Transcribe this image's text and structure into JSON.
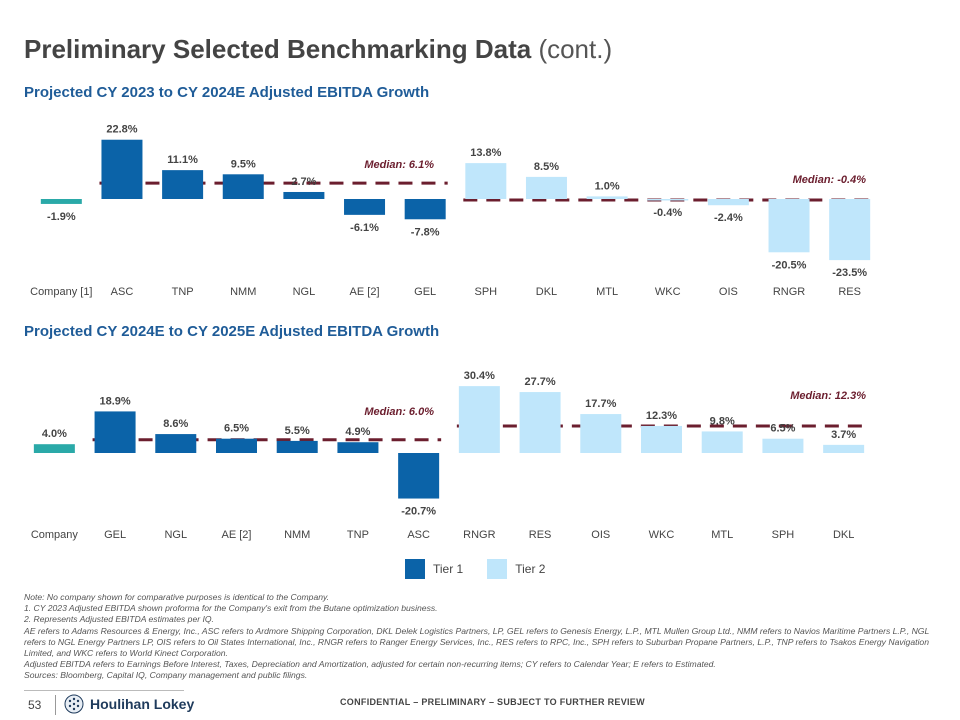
{
  "page": {
    "title_main": "Preliminary Selected Benchmarking Data",
    "title_suffix": "(cont.)",
    "page_number": "53",
    "logo_text": "Houlihan Lokey",
    "confidential": "CONFIDENTIAL – PRELIMINARY – SUBJECT TO FURTHER REVIEW"
  },
  "colors": {
    "tier1": "#0b63a8",
    "tier2": "#bfe6fb",
    "company": "#2aa9a8",
    "median": "#6b1e2e",
    "title": "#1f5c98"
  },
  "legend": {
    "tier1": "Tier 1",
    "tier2": "Tier 2"
  },
  "chart_data": [
    {
      "type": "bar",
      "title": "Projected CY 2023 to CY 2024E Adjusted EBITDA Growth",
      "categories": [
        "Company [1]",
        "ASC",
        "TNP",
        "NMM",
        "NGL",
        "AE [2]",
        "GEL",
        "SPH",
        "DKL",
        "MTL",
        "WKC",
        "OIS",
        "RNGR",
        "RES"
      ],
      "values": [
        -1.9,
        22.8,
        11.1,
        9.5,
        2.7,
        -6.1,
        -7.8,
        13.8,
        8.5,
        1.0,
        -0.4,
        -2.4,
        -20.5,
        -23.5
      ],
      "labels": [
        "-1.9%",
        "22.8%",
        "11.1%",
        "9.5%",
        "2.7%",
        "-6.1%",
        "-7.8%",
        "13.8%",
        "8.5%",
        "1.0%",
        "-0.4%",
        "-2.4%",
        "-20.5%",
        "-23.5%"
      ],
      "groups": [
        "company",
        "tier1",
        "tier1",
        "tier1",
        "tier1",
        "tier1",
        "tier1",
        "tier2",
        "tier2",
        "tier2",
        "tier2",
        "tier2",
        "tier2",
        "tier2"
      ],
      "medians": [
        {
          "label": "Median: 6.1%",
          "value": 6.1,
          "from": 1,
          "to": 6
        },
        {
          "label": "Median: -0.4%",
          "value": -0.4,
          "from": 7,
          "to": 13
        }
      ],
      "ylim": [
        -25,
        25
      ]
    },
    {
      "type": "bar",
      "title": "Projected CY 2024E to CY 2025E Adjusted EBITDA Growth",
      "categories": [
        "Company",
        "GEL",
        "NGL",
        "AE [2]",
        "NMM",
        "TNP",
        "ASC",
        "RNGR",
        "RES",
        "OIS",
        "WKC",
        "MTL",
        "SPH",
        "DKL"
      ],
      "values": [
        4.0,
        18.9,
        8.6,
        6.5,
        5.5,
        4.9,
        -20.7,
        30.4,
        27.7,
        17.7,
        12.3,
        9.8,
        6.5,
        3.7
      ],
      "labels": [
        "4.0%",
        "18.9%",
        "8.6%",
        "6.5%",
        "5.5%",
        "4.9%",
        "-20.7%",
        "30.4%",
        "27.7%",
        "17.7%",
        "12.3%",
        "9.8%",
        "6.5%",
        "3.7%"
      ],
      "groups": [
        "company",
        "tier1",
        "tier1",
        "tier1",
        "tier1",
        "tier1",
        "tier1",
        "tier2",
        "tier2",
        "tier2",
        "tier2",
        "tier2",
        "tier2",
        "tier2"
      ],
      "medians": [
        {
          "label": "Median: 6.0%",
          "value": 6.0,
          "from": 1,
          "to": 6
        },
        {
          "label": "Median: 12.3%",
          "value": 12.3,
          "from": 7,
          "to": 13
        }
      ],
      "ylim": [
        -22,
        32
      ]
    }
  ],
  "notes": [
    "Note: No company shown for comparative purposes is identical to the Company.",
    "1. CY 2023 Adjusted EBITDA shown proforma for the Company's exit from the Butane optimization business.",
    "2. Represents Adjusted EBITDA estimates per IQ.",
    "AE refers to Adams Resources & Energy, Inc., ASC refers to Ardmore Shipping Corporation, DKL Delek Logistics Partners, LP, GEL refers to Genesis Energy, L.P., MTL Mullen Group Ltd., NMM refers to Navios Maritime Partners L.P., NGL refers to NGL Energy Partners LP, OIS refers to Oil States International, Inc., RNGR refers to Ranger Energy Services, Inc., RES refers to RPC, Inc., SPH refers to Suburban Propane Partners, L.P., TNP refers to Tsakos Energy Navigation Limited, and WKC refers to World Kinect Corporation.",
    "Adjusted EBITDA refers to Earnings Before Interest, Taxes, Depreciation and Amortization, adjusted for certain non-recurring items; CY refers to Calendar Year; E refers to Estimated.",
    "Sources: Bloomberg, Capital IQ, Company management and public filings."
  ]
}
